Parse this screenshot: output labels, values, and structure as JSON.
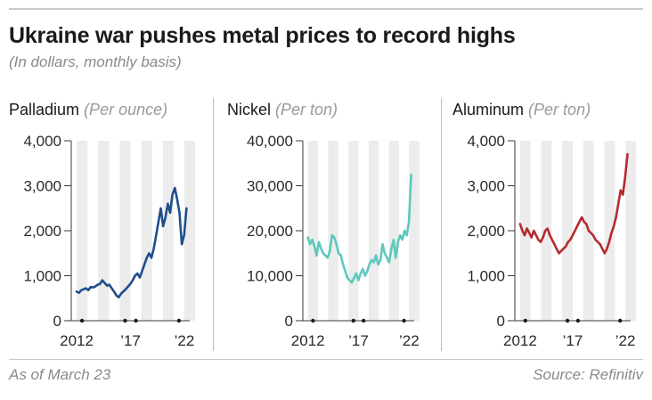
{
  "header": {
    "title": "Ukraine war pushes metal prices to record highs",
    "subtitle": "(In dollars, monthly basis)"
  },
  "footer": {
    "note": "As of March 23",
    "source": "Source: Refinitiv"
  },
  "chart_data": [
    {
      "type": "line",
      "name": "Palladium",
      "unit": "(Per ounce)",
      "color": "#1f4e8c",
      "ylim": [
        0,
        4000
      ],
      "yticks": [
        "4,000",
        "3,000",
        "2,000",
        "1,000",
        "0"
      ],
      "xticks": [
        "2012",
        "’17",
        "’22"
      ],
      "xlim": [
        2011.5,
        2022.5
      ],
      "x_start": 2012,
      "x_end": 2022.2,
      "values": [
        650,
        620,
        680,
        700,
        720,
        680,
        750,
        740,
        760,
        800,
        820,
        900,
        840,
        780,
        800,
        720,
        650,
        560,
        520,
        600,
        650,
        700,
        760,
        820,
        900,
        1000,
        1050,
        960,
        1100,
        1250,
        1400,
        1500,
        1400,
        1600,
        1900,
        2200,
        2500,
        2100,
        2300,
        2600,
        2400,
        2800,
        2950,
        2700,
        2400,
        1700,
        1900,
        2500
      ],
      "grid": "shaded-bands"
    },
    {
      "type": "line",
      "name": "Nickel",
      "unit": "(Per ton)",
      "color": "#5ec8bd",
      "ylim": [
        0,
        40000
      ],
      "yticks": [
        "40,000",
        "30,000",
        "20,000",
        "10,000",
        "0"
      ],
      "xticks": [
        "2012",
        "’17",
        "’22"
      ],
      "xlim": [
        2011.5,
        2022.5
      ],
      "x_start": 2012,
      "x_end": 2022.2,
      "values": [
        18500,
        17000,
        18000,
        16500,
        14500,
        17500,
        16000,
        15000,
        14500,
        14000,
        15500,
        19000,
        18500,
        17000,
        15000,
        14500,
        12500,
        11000,
        9500,
        9000,
        8500,
        9500,
        10500,
        9000,
        10500,
        11500,
        10000,
        11000,
        12500,
        13500,
        13000,
        14500,
        12500,
        13500,
        17000,
        15000,
        14000,
        13000,
        16000,
        18000,
        14000,
        17500,
        19000,
        18000,
        20000,
        19000,
        22000,
        32500
      ],
      "grid": "shaded-bands"
    },
    {
      "type": "line",
      "name": "Aluminum",
      "unit": "(Per ton)",
      "color": "#b52a2e",
      "ylim": [
        0,
        4000
      ],
      "yticks": [
        "4,000",
        "3,000",
        "2,000",
        "1,000",
        "0"
      ],
      "xticks": [
        "2012",
        "’17",
        "’22"
      ],
      "xlim": [
        2011.5,
        2022.5
      ],
      "x_start": 2012,
      "x_end": 2022.2,
      "values": [
        2150,
        2000,
        1900,
        2050,
        1950,
        1850,
        2000,
        1900,
        1800,
        1750,
        1850,
        2000,
        2050,
        1900,
        1800,
        1700,
        1600,
        1500,
        1550,
        1600,
        1650,
        1750,
        1800,
        1900,
        2000,
        2100,
        2200,
        2300,
        2200,
        2150,
        2000,
        1950,
        1900,
        1800,
        1750,
        1700,
        1600,
        1500,
        1600,
        1750,
        1950,
        2100,
        2300,
        2600,
        2900,
        2800,
        3200,
        3700
      ],
      "grid": "shaded-bands"
    }
  ]
}
